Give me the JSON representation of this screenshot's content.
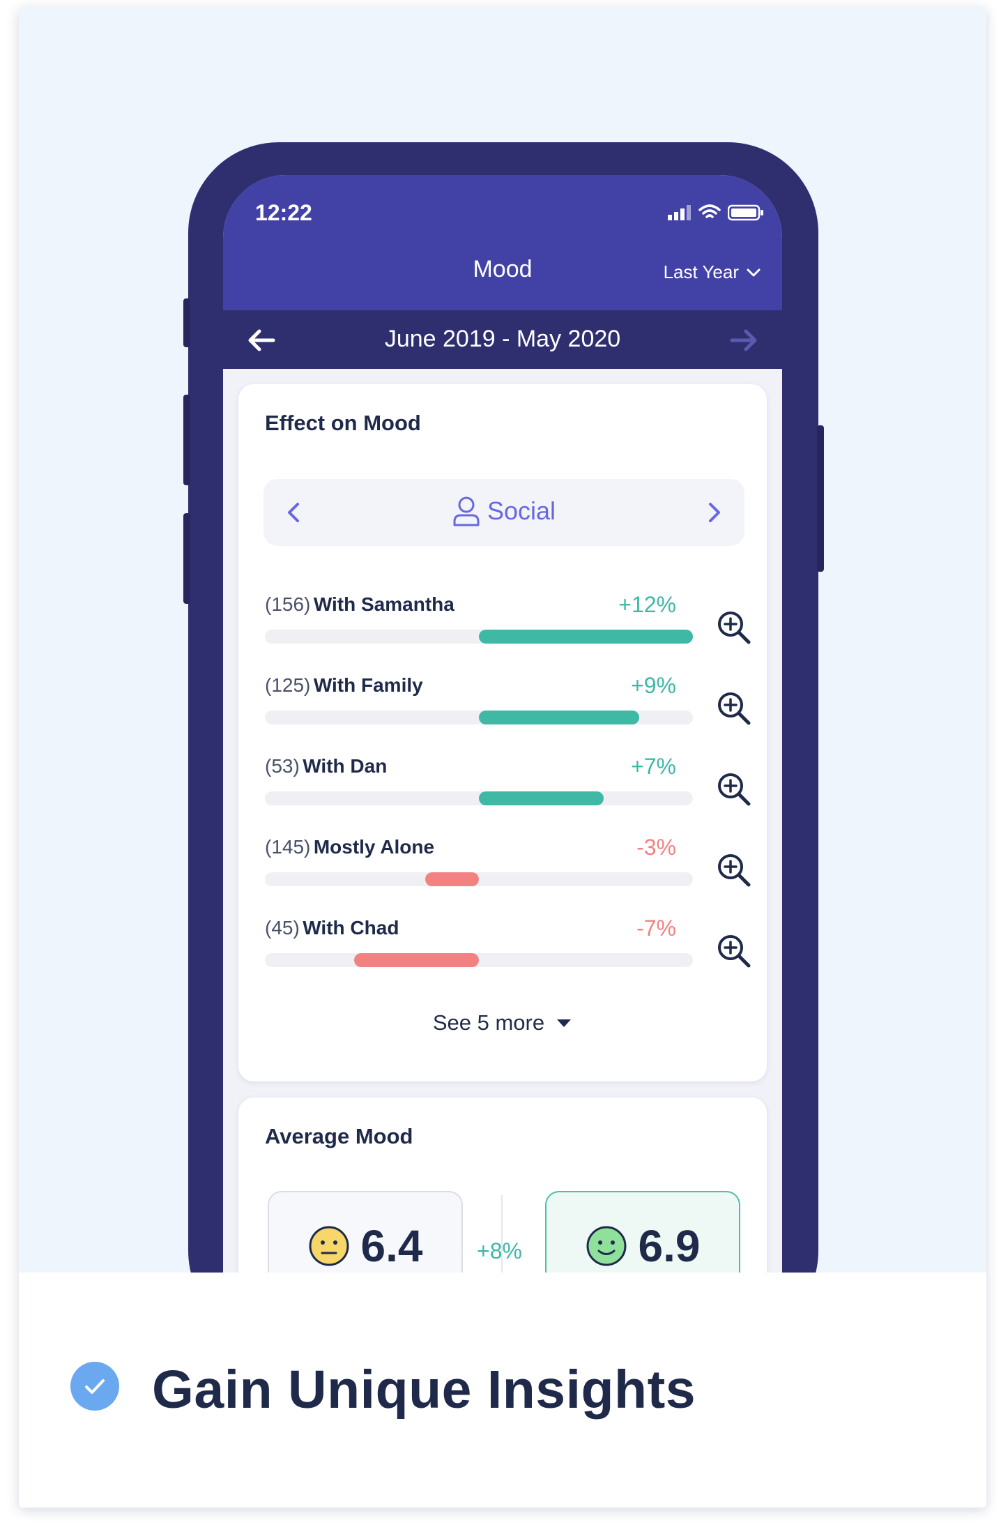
{
  "status_bar": {
    "time": "12:22"
  },
  "header": {
    "title": "Mood",
    "range": "Last Year"
  },
  "date_bar": {
    "label": "June 2019 - May 2020"
  },
  "effect_panel": {
    "title": "Effect on Mood",
    "category": "Social",
    "rows": [
      {
        "count": "(156)",
        "label": "With Samantha",
        "pct": "+12%",
        "value": 12
      },
      {
        "count": "(125)",
        "label": "With Family",
        "pct": "+9%",
        "value": 9
      },
      {
        "count": "(53)",
        "label": "With Dan",
        "pct": "+7%",
        "value": 7
      },
      {
        "count": "(145)",
        "label": "Mostly Alone",
        "pct": "-3%",
        "value": -3
      },
      {
        "count": "(45)",
        "label": "With Chad",
        "pct": "-7%",
        "value": -7
      }
    ],
    "see_more": "See 5 more"
  },
  "average_panel": {
    "title": "Average Mood",
    "before": "6.4",
    "delta": "+8%",
    "after": "6.9"
  },
  "colors": {
    "positive": "#3fb8a6",
    "negative": "#f28282",
    "accent": "#4242a6"
  },
  "icons": [
    "wifi-icon",
    "battery-icon",
    "signal-icon",
    "person-icon",
    "zoom-in-icon",
    "check-circle-icon",
    "neutral-face-icon",
    "smile-face-icon"
  ],
  "footer": {
    "tagline": "Gain Unique Insights"
  }
}
